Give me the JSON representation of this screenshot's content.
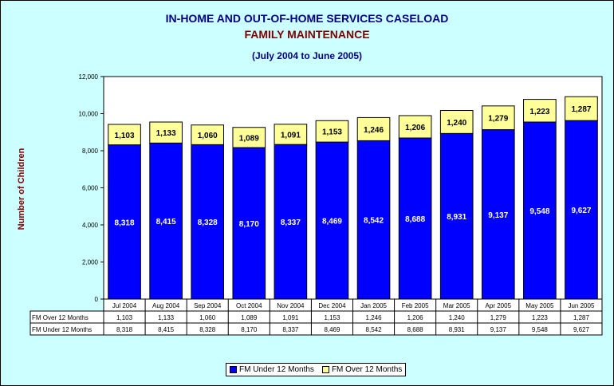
{
  "chart_data": {
    "type": "bar",
    "stacked": true,
    "title": "IN-HOME AND OUT-OF-HOME SERVICES CASELOAD",
    "subtitle": "FAMILY MAINTENANCE",
    "period": "(July 2004 to June 2005)",
    "xlabel": "",
    "ylabel": "Number of Children",
    "ylim": [
      0,
      12000
    ],
    "yticks": [
      "0",
      "2,000",
      "4,000",
      "6,000",
      "8,000",
      "10,000",
      "12,000"
    ],
    "grid": false,
    "legend_position": "bottom",
    "categories": [
      "Jul 2004",
      "Aug 2004",
      "Sep 2004",
      "Oct 2004",
      "Nov 2004",
      "Dec 2004",
      "Jan 2005",
      "Feb 2005",
      "Mar 2005",
      "Apr 2005",
      "May 2005",
      "Jun 2005"
    ],
    "series": [
      {
        "name": "FM Under 12 Months",
        "color": "#0000FF",
        "values": [
          8318,
          8415,
          8328,
          8170,
          8337,
          8469,
          8542,
          8688,
          8931,
          9137,
          9548,
          9627
        ],
        "labels": [
          "8,318",
          "8,415",
          "8,328",
          "8,170",
          "8,337",
          "8,469",
          "8,542",
          "8,688",
          "8,931",
          "9,137",
          "9,548",
          "9,627"
        ]
      },
      {
        "name": "FM Over 12 Months",
        "color": "#FFFF99",
        "values": [
          1103,
          1133,
          1060,
          1089,
          1091,
          1153,
          1246,
          1206,
          1240,
          1279,
          1223,
          1287
        ],
        "labels": [
          "1,103",
          "1,133",
          "1,060",
          "1,089",
          "1,091",
          "1,153",
          "1,246",
          "1,206",
          "1,240",
          "1,279",
          "1,223",
          "1,287"
        ]
      }
    ],
    "table_rows": [
      {
        "label": "FM Over 12 Months",
        "series_index": 1
      },
      {
        "label": "FM Under 12 Months",
        "series_index": 0
      }
    ]
  }
}
